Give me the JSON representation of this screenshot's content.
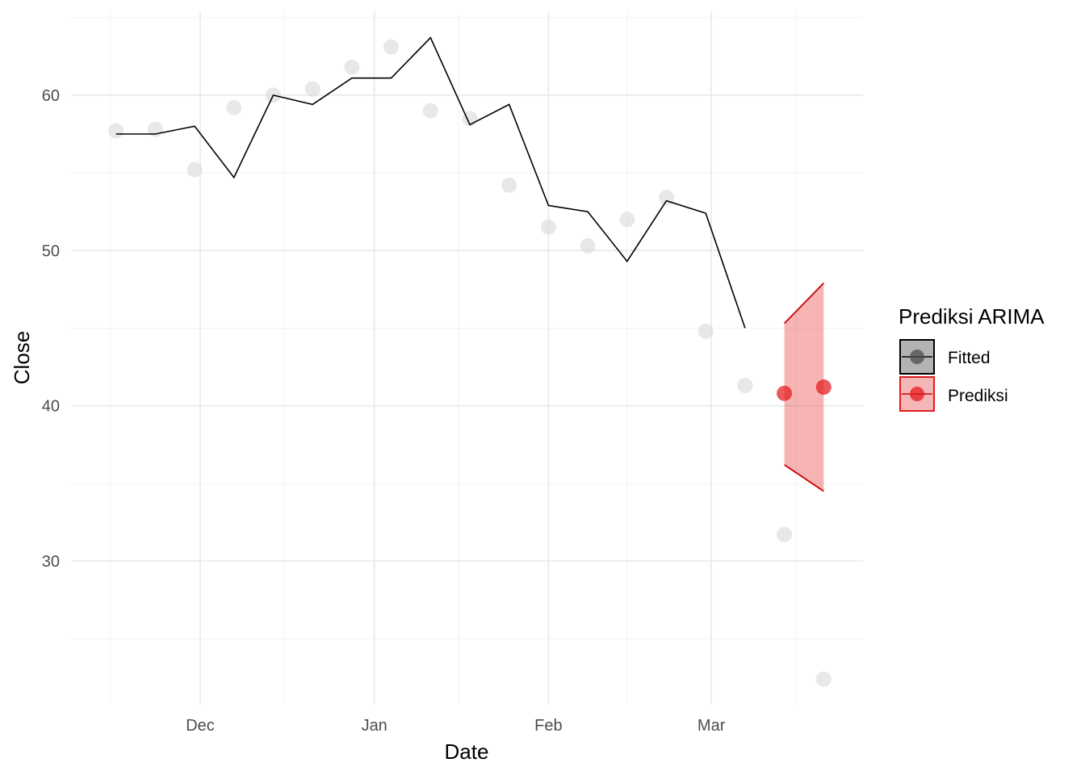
{
  "chart_data": {
    "type": "line",
    "xlabel": "Date",
    "ylabel": "Close",
    "x_ticks": [
      "Dec",
      "Jan",
      "Feb",
      "Mar"
    ],
    "y_ticks": [
      30,
      40,
      50,
      60
    ],
    "ylim": [
      20.8,
      65.4
    ],
    "grid": true,
    "legend": {
      "title": "Prediksi ARIMA",
      "position": "right",
      "items": [
        {
          "label": "Fitted",
          "color": "#000000"
        },
        {
          "label": "Prediksi",
          "color": "#e31a1c"
        }
      ]
    },
    "actual": {
      "color": "#d9d9d9",
      "x": [
        "2023-11-16",
        "2023-11-23",
        "2023-11-30",
        "2023-12-07",
        "2023-12-14",
        "2023-12-21",
        "2023-12-28",
        "2024-01-04",
        "2024-01-11",
        "2024-01-18",
        "2024-01-25",
        "2024-02-01",
        "2024-02-08",
        "2024-02-15",
        "2024-02-22",
        "2024-02-29",
        "2024-03-07",
        "2024-03-14",
        "2024-03-21"
      ],
      "y": [
        57.7,
        57.8,
        55.2,
        59.2,
        60.0,
        60.4,
        61.8,
        63.1,
        59.0,
        58.5,
        54.2,
        51.5,
        50.3,
        52.0,
        53.4,
        44.8,
        41.3,
        31.7,
        22.4
      ]
    },
    "series": [
      {
        "name": "Fitted",
        "color": "#000000",
        "x": [
          "2023-11-16",
          "2023-11-23",
          "2023-11-30",
          "2023-12-07",
          "2023-12-14",
          "2023-12-21",
          "2023-12-28",
          "2024-01-04",
          "2024-01-11",
          "2024-01-18",
          "2024-01-25",
          "2024-02-01",
          "2024-02-08",
          "2024-02-15",
          "2024-02-22",
          "2024-02-29",
          "2024-03-07"
        ],
        "y": [
          57.5,
          57.5,
          58.0,
          54.7,
          60.0,
          59.4,
          61.1,
          61.1,
          63.7,
          58.1,
          59.4,
          52.9,
          52.5,
          49.3,
          53.2,
          52.4,
          45.0
        ]
      },
      {
        "name": "Prediksi",
        "color": "#e31a1c",
        "x": [
          "2024-03-14",
          "2024-03-21"
        ],
        "y": [
          40.8,
          41.2
        ],
        "lower": [
          36.2,
          34.5
        ],
        "upper": [
          45.3,
          47.9
        ]
      }
    ]
  }
}
